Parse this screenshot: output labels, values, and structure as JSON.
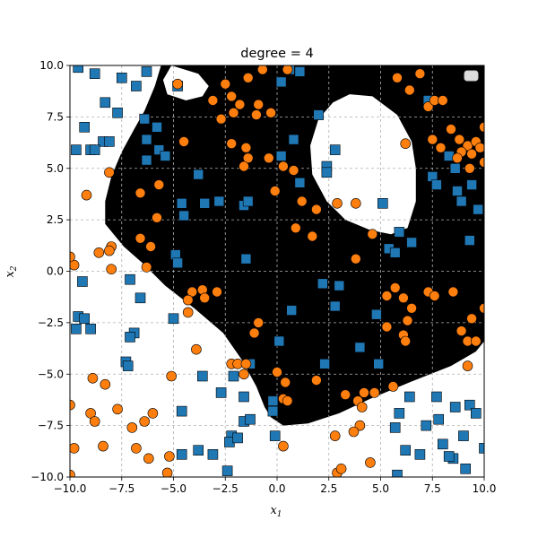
{
  "chart_data": {
    "type": "scatter",
    "title": "degree  = 4",
    "xlabel": "x",
    "xlabel_sub": "1",
    "ylabel": "x",
    "ylabel_sub": "2",
    "xlim": [
      -10,
      10
    ],
    "ylim": [
      -10,
      10
    ],
    "xticks": [
      -10.0,
      -7.5,
      -5.0,
      -2.5,
      0.0,
      2.5,
      5.0,
      7.5,
      10.0
    ],
    "yticks": [
      -10.0,
      -7.5,
      -5.0,
      -2.5,
      0.0,
      2.5,
      5.0,
      7.5,
      10.0
    ],
    "xtick_labels": [
      "−10.0",
      "−7.5",
      "−5.0",
      "−2.5",
      "0.0",
      "2.5",
      "5.0",
      "7.5",
      "10.0"
    ],
    "ytick_labels": [
      "−10.0",
      "−7.5",
      "−5.0",
      "−2.5",
      "0.0",
      "2.5",
      "5.0",
      "7.5",
      "10.0"
    ],
    "grid": true,
    "legend": "top-right (empty)",
    "colors": {
      "region_positive": "#000000",
      "region_negative": "#ffffff",
      "square_marker": "#1f77b4",
      "circle_marker": "#ff7f0e",
      "grid": "#b0b0b0"
    },
    "series": [
      {
        "marker": "square",
        "color": "#1f77b4",
        "points": [
          [
            -9.6,
            9.9
          ],
          [
            -8.8,
            9.6
          ],
          [
            -7.5,
            9.4
          ],
          [
            -6.3,
            9.7
          ],
          [
            -4.8,
            9.0
          ],
          [
            -6.8,
            9.0
          ],
          [
            -8.3,
            8.2
          ],
          [
            -7.7,
            7.7
          ],
          [
            -6.4,
            7.4
          ],
          [
            -5.8,
            7.0
          ],
          [
            -9.3,
            7.0
          ],
          [
            -8.4,
            6.3
          ],
          [
            -8.1,
            6.3
          ],
          [
            -9.7,
            5.9
          ],
          [
            -9.0,
            5.9
          ],
          [
            -8.8,
            5.9
          ],
          [
            -6.3,
            6.4
          ],
          [
            -5.7,
            5.9
          ],
          [
            -5.4,
            5.6
          ],
          [
            -6.3,
            5.4
          ],
          [
            -3.8,
            4.7
          ],
          [
            -4.6,
            3.3
          ],
          [
            -3.5,
            3.3
          ],
          [
            -2.8,
            3.4
          ],
          [
            -1.6,
            3.2
          ],
          [
            -1.4,
            3.4
          ],
          [
            -4.5,
            2.7
          ],
          [
            0.2,
            9.2
          ],
          [
            0.6,
            9.8
          ],
          [
            1.1,
            9.7
          ],
          [
            0.8,
            6.4
          ],
          [
            2.0,
            7.6
          ],
          [
            0.2,
            5.6
          ],
          [
            2.4,
            5.1
          ],
          [
            2.4,
            4.8
          ],
          [
            2.8,
            5.9
          ],
          [
            1.1,
            4.3
          ],
          [
            5.1,
            3.3
          ],
          [
            6.5,
            1.4
          ],
          [
            5.9,
            1.9
          ],
          [
            5.4,
            1.1
          ],
          [
            5.7,
            0.9
          ],
          [
            -1.5,
            0.6
          ],
          [
            -4.9,
            0.8
          ],
          [
            -4.8,
            0.4
          ],
          [
            -9.4,
            -0.5
          ],
          [
            -7.1,
            -0.4
          ],
          [
            -6.6,
            -1.3
          ],
          [
            -9.6,
            -2.2
          ],
          [
            -9.3,
            -2.3
          ],
          [
            -9.7,
            -2.8
          ],
          [
            -9.0,
            -2.8
          ],
          [
            -6.9,
            -3.0
          ],
          [
            -7.1,
            -3.2
          ],
          [
            -5.0,
            -2.3
          ],
          [
            2.2,
            -0.6
          ],
          [
            3.0,
            -0.7
          ],
          [
            0.7,
            -1.9
          ],
          [
            2.8,
            -1.7
          ],
          [
            4.8,
            -2.1
          ],
          [
            0.1,
            -3.4
          ],
          [
            -3.6,
            -5.1
          ],
          [
            -2.1,
            -5.1
          ],
          [
            -1.3,
            -4.5
          ],
          [
            4.0,
            -3.7
          ],
          [
            2.3,
            -4.5
          ],
          [
            4.9,
            -4.5
          ],
          [
            -2.7,
            -5.9
          ],
          [
            -1.6,
            -6.1
          ],
          [
            -7.3,
            -4.4
          ],
          [
            -7.2,
            -4.6
          ],
          [
            -4.6,
            -6.8
          ],
          [
            -1.6,
            -7.3
          ],
          [
            -1.3,
            -7.2
          ],
          [
            -0.2,
            -6.3
          ],
          [
            -0.2,
            -6.8
          ],
          [
            -2.2,
            -8.0
          ],
          [
            -2.3,
            -8.3
          ],
          [
            -1.9,
            -8.1
          ],
          [
            -0.1,
            -8.0
          ],
          [
            -3.8,
            -8.7
          ],
          [
            -4.6,
            -8.9
          ],
          [
            -3.1,
            -8.9
          ],
          [
            -2.4,
            -9.7
          ],
          [
            5.9,
            -6.9
          ],
          [
            5.7,
            -7.6
          ],
          [
            6.4,
            -6.1
          ],
          [
            6.2,
            -8.7
          ],
          [
            6.9,
            -8.9
          ],
          [
            7.2,
            -7.5
          ],
          [
            7.8,
            -7.2
          ],
          [
            7.7,
            -6.1
          ],
          [
            8.6,
            -6.6
          ],
          [
            9.0,
            -8.0
          ],
          [
            8.0,
            -8.4
          ],
          [
            8.5,
            -9.1
          ],
          [
            8.3,
            -9.0
          ],
          [
            9.3,
            -6.5
          ],
          [
            9.6,
            -6.9
          ],
          [
            9.1,
            -9.6
          ],
          [
            10.0,
            -8.6
          ],
          [
            5.8,
            -9.9
          ],
          [
            7.3,
            8.3
          ],
          [
            7.5,
            4.6
          ],
          [
            7.7,
            4.2
          ],
          [
            8.3,
            5.6
          ],
          [
            8.6,
            5.0
          ],
          [
            8.7,
            3.9
          ],
          [
            8.9,
            3.4
          ],
          [
            9.4,
            4.2
          ],
          [
            9.7,
            3.0
          ],
          [
            9.3,
            1.5
          ]
        ]
      },
      {
        "marker": "circle",
        "color": "#ff7f0e",
        "points": [
          [
            -4.8,
            9.1
          ],
          [
            -2.5,
            9.1
          ],
          [
            -1.4,
            9.4
          ],
          [
            -2.2,
            8.5
          ],
          [
            -1.8,
            8.1
          ],
          [
            -3.1,
            8.3
          ],
          [
            -2.1,
            7.7
          ],
          [
            -0.9,
            8.1
          ],
          [
            -0.7,
            9.8
          ],
          [
            0.5,
            9.8
          ],
          [
            -2.7,
            7.4
          ],
          [
            -1.0,
            7.6
          ],
          [
            -0.3,
            7.7
          ],
          [
            -4.5,
            6.3
          ],
          [
            -2.2,
            6.2
          ],
          [
            -1.5,
            6.0
          ],
          [
            -1.4,
            5.5
          ],
          [
            -0.4,
            5.5
          ],
          [
            0.3,
            5.1
          ],
          [
            -1.6,
            5.1
          ],
          [
            -0.1,
            3.9
          ],
          [
            0.8,
            4.9
          ],
          [
            1.2,
            3.4
          ],
          [
            -6.6,
            3.8
          ],
          [
            -8.1,
            4.8
          ],
          [
            -5.7,
            4.2
          ],
          [
            -5.8,
            2.6
          ],
          [
            -9.2,
            3.7
          ],
          [
            -6.1,
            1.2
          ],
          [
            -6.6,
            1.6
          ],
          [
            -8.0,
            1.2
          ],
          [
            -8.1,
            1.0
          ],
          [
            -8.6,
            0.9
          ],
          [
            -9.8,
            0.3
          ],
          [
            -10.0,
            0.7
          ],
          [
            -8.0,
            0.1
          ],
          [
            -6.3,
            0.2
          ],
          [
            -4.1,
            -1.0
          ],
          [
            -3.6,
            -0.9
          ],
          [
            -3.5,
            -1.3
          ],
          [
            -2.9,
            -1.0
          ],
          [
            -4.3,
            -1.4
          ],
          [
            -4.3,
            -2.0
          ],
          [
            -0.9,
            -2.5
          ],
          [
            -1.1,
            -3.0
          ],
          [
            -3.9,
            -3.8
          ],
          [
            -5.1,
            -5.1
          ],
          [
            -2.2,
            -4.5
          ],
          [
            -1.9,
            -4.5
          ],
          [
            -1.5,
            -4.5
          ],
          [
            -1.6,
            -5.0
          ],
          [
            0.0,
            -4.9
          ],
          [
            0.4,
            -5.4
          ],
          [
            1.9,
            -5.3
          ],
          [
            0.3,
            -6.2
          ],
          [
            0.5,
            -6.3
          ],
          [
            3.3,
            -6.0
          ],
          [
            3.9,
            -6.3
          ],
          [
            4.2,
            -5.9
          ],
          [
            4.7,
            -5.9
          ],
          [
            5.6,
            -5.6
          ],
          [
            4.1,
            -6.6
          ],
          [
            4.0,
            -7.5
          ],
          [
            3.7,
            -7.8
          ],
          [
            2.8,
            -8.0
          ],
          [
            0.3,
            -8.5
          ],
          [
            2.9,
            -9.8
          ],
          [
            3.1,
            -9.6
          ],
          [
            4.5,
            -9.3
          ],
          [
            1.9,
            3.0
          ],
          [
            0.9,
            2.1
          ],
          [
            1.7,
            1.7
          ],
          [
            2.9,
            3.3
          ],
          [
            3.8,
            3.3
          ],
          [
            4.6,
            1.8
          ],
          [
            3.8,
            0.6
          ],
          [
            5.7,
            -0.8
          ],
          [
            5.3,
            -1.2
          ],
          [
            6.1,
            -1.3
          ],
          [
            7.3,
            -1.0
          ],
          [
            8.5,
            -1.0
          ],
          [
            6.3,
            -2.4
          ],
          [
            6.5,
            -1.8
          ],
          [
            7.6,
            -1.2
          ],
          [
            6.1,
            -3.1
          ],
          [
            6.2,
            -3.4
          ],
          [
            5.3,
            -2.7
          ],
          [
            8.9,
            -2.9
          ],
          [
            9.2,
            -3.4
          ],
          [
            9.6,
            -3.4
          ],
          [
            9.4,
            -2.3
          ],
          [
            10.0,
            -1.8
          ],
          [
            9.2,
            -4.6
          ],
          [
            5.8,
            9.4
          ],
          [
            6.9,
            9.6
          ],
          [
            6.4,
            8.8
          ],
          [
            7.3,
            8.0
          ],
          [
            7.6,
            8.3
          ],
          [
            8.0,
            8.3
          ],
          [
            7.5,
            6.4
          ],
          [
            7.9,
            6.0
          ],
          [
            8.4,
            6.9
          ],
          [
            8.8,
            6.4
          ],
          [
            9.2,
            6.1
          ],
          [
            9.6,
            6.3
          ],
          [
            8.9,
            5.8
          ],
          [
            8.7,
            5.5
          ],
          [
            9.4,
            5.7
          ],
          [
            9.8,
            6.0
          ],
          [
            9.3,
            5.0
          ],
          [
            10.0,
            7.0
          ],
          [
            10.0,
            5.3
          ],
          [
            6.2,
            6.2
          ],
          [
            -10.0,
            -6.5
          ],
          [
            -9.0,
            -6.9
          ],
          [
            -8.8,
            -7.3
          ],
          [
            -8.9,
            -5.2
          ],
          [
            -8.3,
            -5.5
          ],
          [
            -7.7,
            -6.7
          ],
          [
            -6.4,
            -7.3
          ],
          [
            -6.0,
            -6.9
          ],
          [
            -6.8,
            -8.6
          ],
          [
            -8.4,
            -8.5
          ],
          [
            -7.0,
            -7.6
          ],
          [
            -9.8,
            -8.6
          ],
          [
            -6.2,
            -9.1
          ],
          [
            -5.2,
            -9.0
          ],
          [
            -5.3,
            -9.8
          ],
          [
            -10.0,
            -9.9
          ]
        ]
      }
    ]
  }
}
